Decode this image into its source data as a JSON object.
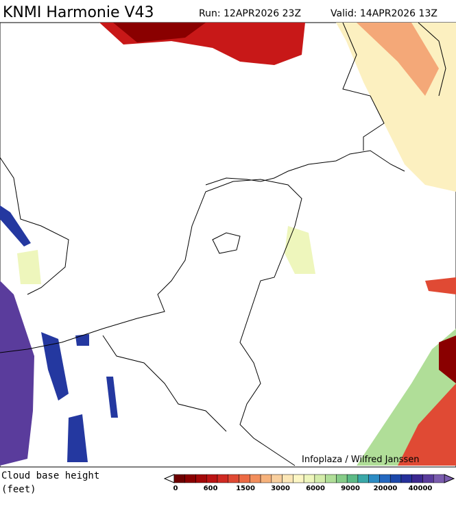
{
  "header": {
    "title": "KNMI Harmonie V43",
    "run": "Run: 12APR2026 23Z",
    "valid": "Valid: 14APR2026 13Z"
  },
  "map": {
    "credit": "Infoplaza / Wilfred Janssen"
  },
  "legend": {
    "title": "Cloud base height",
    "unit": "(feet)",
    "colors": [
      "#6e0000",
      "#8a0000",
      "#a30808",
      "#bb1414",
      "#d02a22",
      "#e04a34",
      "#ec6a44",
      "#f28e5c",
      "#f6b27c",
      "#f8cf9e",
      "#fbe6b6",
      "#fcf6c4",
      "#eef6bc",
      "#d4ecaa",
      "#b0de98",
      "#86cc88",
      "#5cba86",
      "#3aa8a8",
      "#2c8cc4",
      "#2468c0",
      "#1c48aa",
      "#26309a",
      "#3c2890",
      "#5a3c9c",
      "#7a5cae"
    ],
    "labels": [
      0,
      600,
      1500,
      3000,
      6000,
      9000,
      20000,
      40000
    ]
  }
}
